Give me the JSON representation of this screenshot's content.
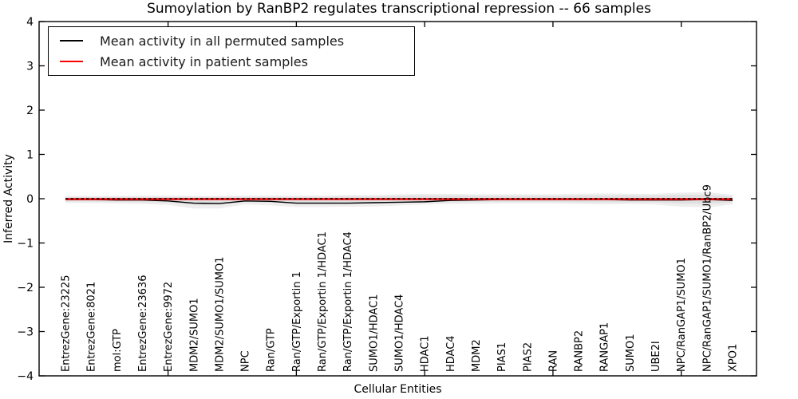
{
  "chart_data": {
    "type": "line",
    "title": "Sumoylation by RanBP2 regulates transcriptional repression -- 66 samples",
    "xlabel": "Cellular Entities",
    "ylabel": "Inferred Activity",
    "ylim": [
      -4,
      4
    ],
    "yticks": [
      -4,
      -3,
      -2,
      -1,
      0,
      1,
      2,
      3,
      4
    ],
    "ytick_labels": [
      "−4",
      "−3",
      "−2",
      "−1",
      "0",
      "1",
      "2",
      "3",
      "4"
    ],
    "xticks_major_positions": [
      4,
      9,
      14,
      19,
      24
    ],
    "grid": false,
    "legend_position": "upper left",
    "categories": [
      "EntrezGene:23225",
      "EntrezGene:8021",
      "mol:GTP",
      "EntrezGene:23636",
      "EntrezGene:9972",
      "MDM2/SUMO1",
      "MDM2/SUMO1/SUMO1",
      "NPC",
      "Ran/GTP",
      "Ran/GTP/Exportin 1",
      "Ran/GTP/Exportin 1/HDAC1",
      "Ran/GTP/Exportin 1/HDAC4",
      "SUMO1/HDAC1",
      "SUMO1/HDAC4",
      "HDAC1",
      "HDAC4",
      "MDM2",
      "PIAS1",
      "PIAS2",
      "RAN",
      "RANBP2",
      "RANGAP1",
      "SUMO1",
      "UBE2I",
      "NPC/RanGAP1/SUMO1",
      "NPC/RanGAP1/SUMO1/RanBP2/Ubc9",
      "XPO1"
    ],
    "series": [
      {
        "name": "Mean activity in all permuted samples",
        "color": "#000000",
        "style": "solid",
        "values": [
          -0.02,
          -0.02,
          -0.03,
          -0.03,
          -0.05,
          -0.1,
          -0.11,
          -0.05,
          -0.06,
          -0.1,
          -0.1,
          -0.1,
          -0.09,
          -0.08,
          -0.07,
          -0.04,
          -0.03,
          -0.02,
          -0.02,
          -0.02,
          -0.02,
          -0.02,
          -0.03,
          -0.03,
          -0.03,
          -0.02,
          -0.04
        ]
      },
      {
        "name": "Mean activity in patient samples",
        "color": "#ff0000",
        "style": "solid",
        "values": [
          -0.01,
          -0.01,
          -0.01,
          -0.01,
          -0.01,
          -0.01,
          -0.01,
          -0.01,
          -0.01,
          -0.01,
          -0.01,
          -0.01,
          -0.01,
          -0.01,
          -0.01,
          -0.01,
          -0.01,
          -0.01,
          -0.01,
          -0.01,
          -0.01,
          -0.01,
          -0.01,
          -0.01,
          -0.01,
          -0.01,
          -0.01
        ]
      },
      {
        "name": "zero-baseline",
        "color": "#000000",
        "style": "dashed",
        "values": [
          0,
          0,
          0,
          0,
          0,
          0,
          0,
          0,
          0,
          0,
          0,
          0,
          0,
          0,
          0,
          0,
          0,
          0,
          0,
          0,
          0,
          0,
          0,
          0,
          0,
          0,
          0
        ]
      }
    ],
    "bands": [
      {
        "name": "permuted-spread-outer",
        "color": "#eeeeee",
        "upper": [
          0.06,
          0.06,
          0.06,
          0.07,
          0.07,
          0.06,
          0.06,
          0.07,
          0.07,
          0.07,
          0.07,
          0.08,
          0.08,
          0.1,
          0.11,
          0.11,
          0.1,
          0.1,
          0.1,
          0.1,
          0.11,
          0.12,
          0.11,
          0.11,
          0.14,
          0.15,
          0.09
        ],
        "lower": [
          -0.1,
          -0.1,
          -0.11,
          -0.12,
          -0.14,
          -0.22,
          -0.22,
          -0.13,
          -0.15,
          -0.19,
          -0.19,
          -0.18,
          -0.18,
          -0.15,
          -0.13,
          -0.12,
          -0.12,
          -0.11,
          -0.11,
          -0.11,
          -0.12,
          -0.13,
          -0.12,
          -0.13,
          -0.18,
          -0.2,
          -0.13
        ]
      },
      {
        "name": "permuted-spread-inner",
        "color": "#e0e0e0",
        "upper": [
          0.04,
          0.04,
          0.04,
          0.04,
          0.04,
          0.04,
          0.04,
          0.04,
          0.04,
          0.04,
          0.04,
          0.05,
          0.05,
          0.06,
          0.07,
          0.07,
          0.06,
          0.06,
          0.06,
          0.06,
          0.07,
          0.07,
          0.07,
          0.07,
          0.09,
          0.09,
          0.05
        ],
        "lower": [
          -0.06,
          -0.06,
          -0.07,
          -0.08,
          -0.09,
          -0.14,
          -0.14,
          -0.08,
          -0.09,
          -0.12,
          -0.12,
          -0.12,
          -0.11,
          -0.1,
          -0.08,
          -0.08,
          -0.07,
          -0.07,
          -0.07,
          -0.07,
          -0.08,
          -0.08,
          -0.08,
          -0.08,
          -0.11,
          -0.12,
          -0.08
        ]
      }
    ]
  }
}
